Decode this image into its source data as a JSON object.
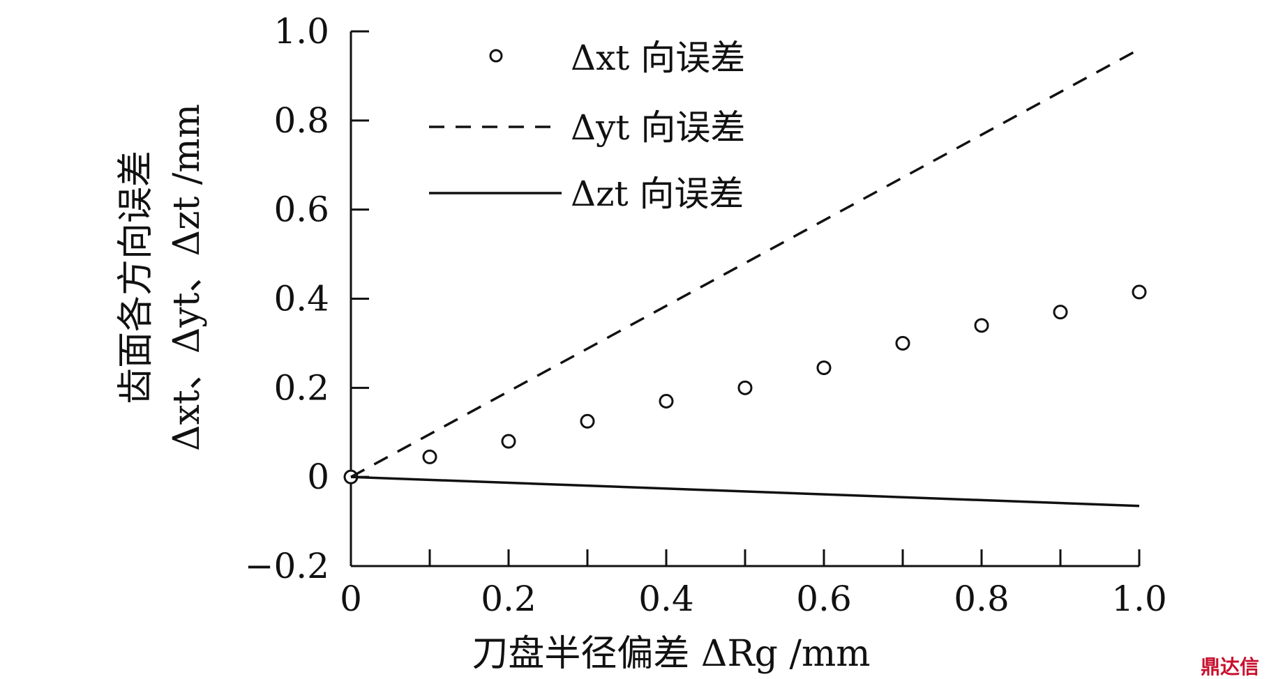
{
  "chart_data": {
    "type": "line",
    "title": "",
    "xlabel": "刀盘半径偏差 ΔRg /mm",
    "ylabel_line1": "齿面各方向误差",
    "ylabel_line2": "Δxt、Δyt、Δzt /mm",
    "xlim": [
      0,
      1.0
    ],
    "ylim": [
      -0.2,
      1.0
    ],
    "x_ticks": [
      "0",
      "0.2",
      "0.4",
      "0.6",
      "0.8",
      "1.0"
    ],
    "x_tick_values": [
      0,
      0.2,
      0.4,
      0.6,
      0.8,
      1.0
    ],
    "x_minor_ticks": [
      0.1,
      0.3,
      0.5,
      0.7,
      0.9
    ],
    "y_ticks": [
      "1.0",
      "0.8",
      "0.6",
      "0.4",
      "0.2",
      "0",
      "−0.2"
    ],
    "y_tick_values": [
      1.0,
      0.8,
      0.6,
      0.4,
      0.2,
      0,
      -0.2
    ],
    "legend_position": "top-left",
    "series": [
      {
        "name": "Δxt 向误差",
        "style": "markers-open-circle",
        "x": [
          0,
          0.1,
          0.2,
          0.3,
          0.4,
          0.5,
          0.6,
          0.7,
          0.8,
          0.9,
          1.0
        ],
        "y": [
          0,
          0.045,
          0.08,
          0.125,
          0.17,
          0.2,
          0.245,
          0.3,
          0.34,
          0.37,
          0.415
        ]
      },
      {
        "name": "Δyt 向误差",
        "style": "dashed",
        "x": [
          0,
          1.0
        ],
        "y": [
          0,
          0.96
        ]
      },
      {
        "name": "Δzt 向误差",
        "style": "solid",
        "x": [
          0,
          1.0
        ],
        "y": [
          0,
          -0.065
        ]
      }
    ]
  },
  "watermark": "鼎达信",
  "colors": {
    "ink": "#111111",
    "watermark": "#c8102e"
  }
}
